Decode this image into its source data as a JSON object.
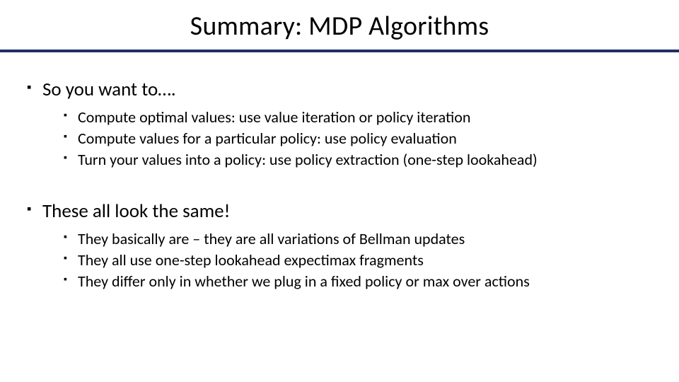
{
  "title": "Summary: MDP Algorithms",
  "rule_color": "#1f2f66",
  "background_color": "#ffffff",
  "text_color": "#000000",
  "title_fontsize": 38,
  "lvl1_fontsize": 27,
  "lvl2_fontsize": 22,
  "bullets": [
    {
      "text": "So you want to….",
      "sub": [
        "Compute optimal values: use value iteration or policy iteration",
        "Compute values for a particular policy: use policy evaluation",
        "Turn your values into a policy: use policy extraction (one-step lookahead)"
      ]
    },
    {
      "text": "These all look the same!",
      "sub": [
        "They basically are – they are all variations of Bellman updates",
        "They all use one-step lookahead expectimax fragments",
        "They differ only in whether we plug in a fixed policy or max over actions"
      ]
    }
  ]
}
